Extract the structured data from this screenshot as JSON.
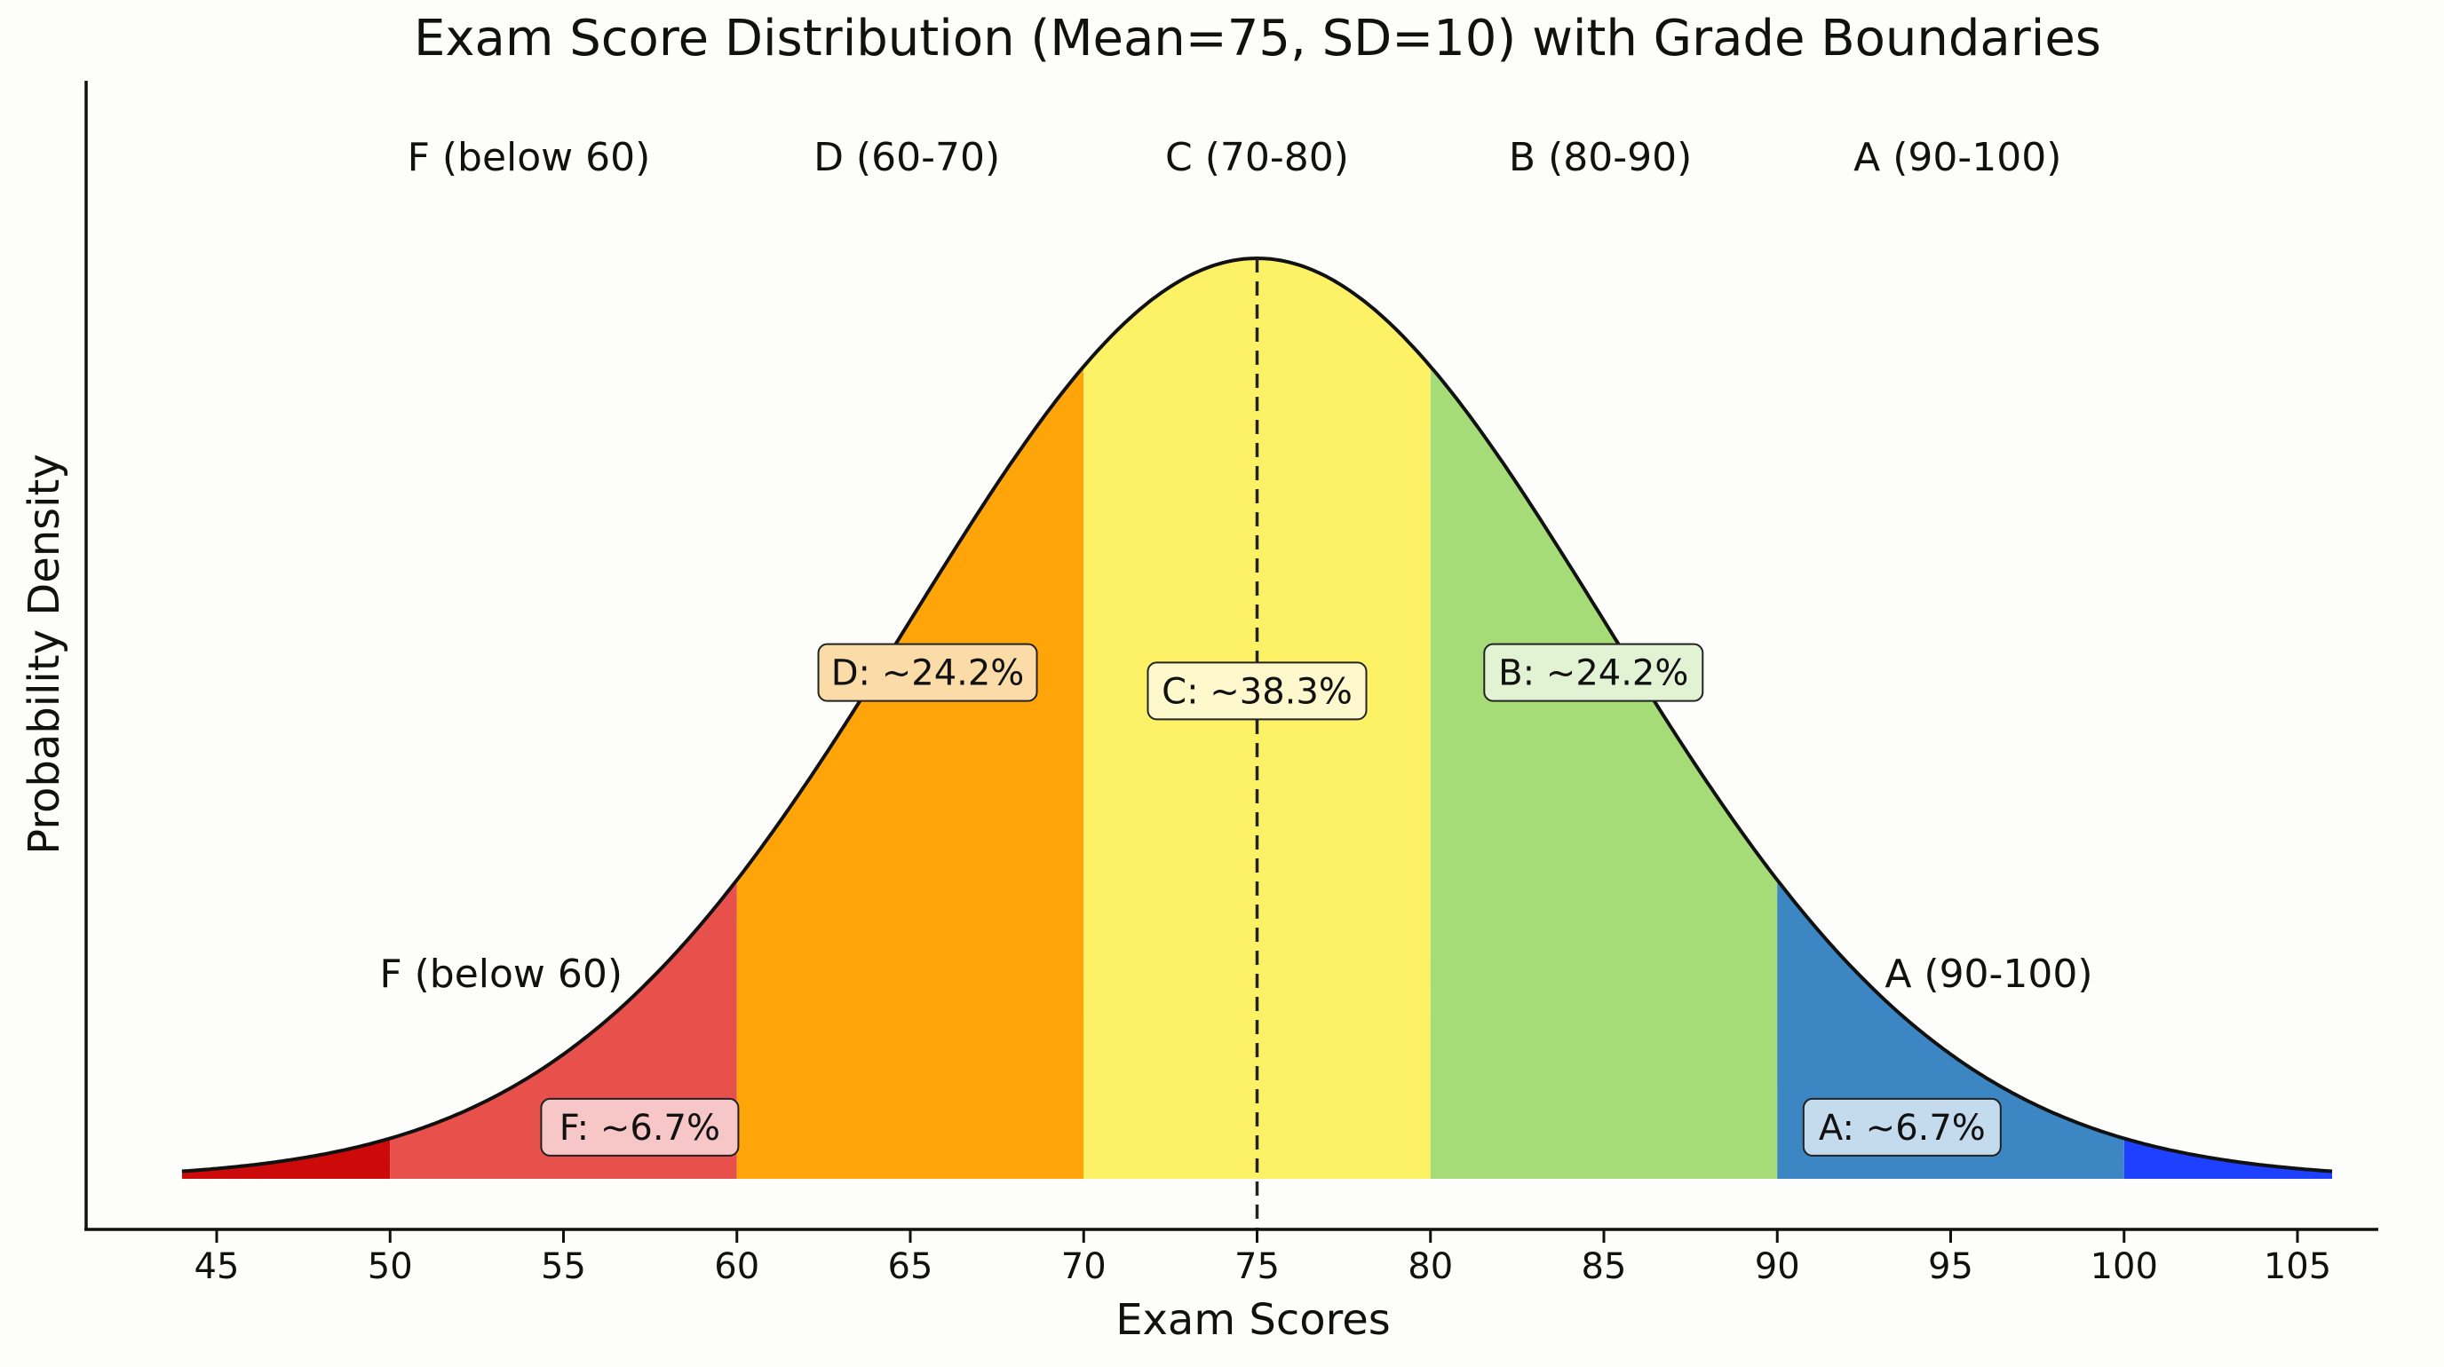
{
  "chart_data": {
    "type": "area",
    "title": "Exam Score Distribution (Mean=75, SD=10) with Grade Boundaries",
    "xlabel": "Exam Scores",
    "ylabel": "Probability Density",
    "distribution": {
      "mean": 75,
      "sd": 10,
      "x_range": [
        44,
        106
      ]
    },
    "xlim": [
      42,
      108
    ],
    "xticks": [
      45,
      50,
      55,
      60,
      65,
      70,
      75,
      80,
      85,
      90,
      95,
      100,
      105
    ],
    "yticks_shown": false,
    "grid": false,
    "mean_line": {
      "x": 75,
      "style": "dashed"
    },
    "regions": [
      {
        "from": 44,
        "to": 50,
        "color": "#cc0a0a"
      },
      {
        "from": 50,
        "to": 60,
        "color": "#e8514b"
      },
      {
        "from": 60,
        "to": 70,
        "color": "#ffa50a"
      },
      {
        "from": 70,
        "to": 80,
        "color": "#fdf166"
      },
      {
        "from": 80,
        "to": 90,
        "color": "#a6dc78"
      },
      {
        "from": 90,
        "to": 100,
        "color": "#3c86c4"
      },
      {
        "from": 100,
        "to": 106,
        "color": "#1e40ff"
      }
    ],
    "top_labels": [
      {
        "text": "F (below 60)",
        "x": 54
      },
      {
        "text": "D (60-70)",
        "x": 64.9
      },
      {
        "text": "C (70-80)",
        "x": 75
      },
      {
        "text": "B (80-90)",
        "x": 84.9
      },
      {
        "text": "A (90-100)",
        "x": 95.2
      }
    ],
    "side_labels": [
      {
        "text": "F (below 60)",
        "x": 53.2
      },
      {
        "text": "A (90-100)",
        "x": 96.1
      }
    ],
    "percent_labels": [
      {
        "text": "F: ~6.7%",
        "x": 57.2,
        "y_frac": 0.056,
        "fill": "#f7c6c6"
      },
      {
        "text": "D: ~24.2%",
        "x": 65.5,
        "y_frac": 0.55,
        "fill": "#fbdca8"
      },
      {
        "text": "C: ~38.3%",
        "x": 75,
        "y_frac": 0.53,
        "fill": "#fdf9cc"
      },
      {
        "text": "B: ~24.2%",
        "x": 84.7,
        "y_frac": 0.55,
        "fill": "#e2f3d4"
      },
      {
        "text": "A: ~6.7%",
        "x": 93.6,
        "y_frac": 0.056,
        "fill": "#c4dbee"
      }
    ]
  }
}
